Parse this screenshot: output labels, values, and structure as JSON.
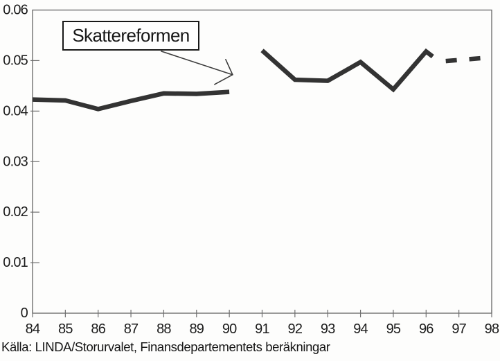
{
  "figure": {
    "source": "Källa: LINDA/Storurvalet, Finansdepartementets beräkningar"
  },
  "chart_data": {
    "type": "line",
    "title": "",
    "xlabel": "",
    "ylabel": "",
    "x_range": [
      84,
      98
    ],
    "y_range": [
      0,
      0.06
    ],
    "x_ticks": [
      "84",
      "85",
      "86",
      "87",
      "88",
      "89",
      "90",
      "91",
      "92",
      "93",
      "94",
      "95",
      "96",
      "97",
      "98"
    ],
    "y_ticks": [
      {
        "value": 0,
        "label": "0"
      },
      {
        "value": 0.01,
        "label": "0.01"
      },
      {
        "value": 0.02,
        "label": "0.02"
      },
      {
        "value": 0.03,
        "label": "0.03"
      },
      {
        "value": 0.04,
        "label": "0.04"
      },
      {
        "value": 0.05,
        "label": "0.05"
      },
      {
        "value": 0.06,
        "label": "0.06"
      }
    ],
    "grid": false,
    "legend": "none",
    "line_color": "#333333",
    "frame_color": "#6f6f6f",
    "series": [
      {
        "id": "pre-reform-1984-1990",
        "style": "solid",
        "points": [
          [
            84,
            0.0423
          ],
          [
            85,
            0.0421
          ],
          [
            86,
            0.0404
          ],
          [
            87,
            0.042
          ],
          [
            88,
            0.0435
          ],
          [
            89,
            0.0434
          ],
          [
            90,
            0.0438
          ]
        ]
      },
      {
        "id": "post-reform-1991-1996",
        "style": "solid",
        "points": [
          [
            91,
            0.052
          ],
          [
            92,
            0.0462
          ],
          [
            93,
            0.046
          ],
          [
            94,
            0.0497
          ],
          [
            95,
            0.0443
          ],
          [
            96,
            0.0518
          ],
          [
            96.2,
            0.0508
          ]
        ]
      },
      {
        "id": "forecast-1997-1998",
        "style": "dashed",
        "points": [
          [
            96.6,
            0.0499
          ],
          [
            97.72,
            0.0505
          ]
        ]
      }
    ],
    "annotation": {
      "text": "Skattereformen",
      "arrow_target": [
        90.1,
        0.0472
      ]
    }
  }
}
